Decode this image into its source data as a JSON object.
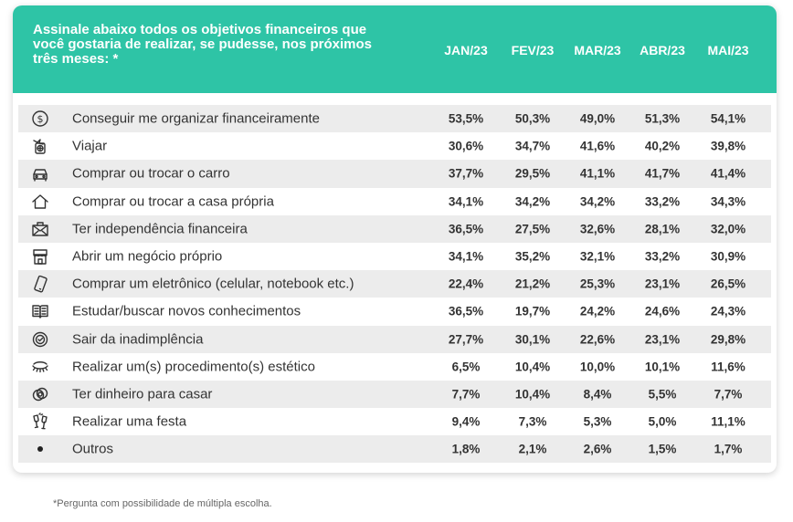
{
  "header": {
    "question": "Assinale abaixo todos os objetivos financeiros que você gostaria de realizar, se pudesse, nos próximos três meses: *"
  },
  "colors": {
    "header_bg": "#2ec4a6",
    "row_shade": "#ececec",
    "text": "#333333"
  },
  "chart_data": {
    "type": "table",
    "title": "Assinale abaixo todos os objetivos financeiros que você gostaria de realizar, se pudesse, nos próximos três meses: *",
    "columns": [
      "JAN/23",
      "FEV/23",
      "MAR/23",
      "ABR/23",
      "MAI/23"
    ],
    "rows": [
      {
        "icon": "money-icon",
        "label": "Conseguir me organizar financeiramente",
        "values": [
          "53,5%",
          "50,3%",
          "49,0%",
          "51,3%",
          "54,1%"
        ]
      },
      {
        "icon": "travel-icon",
        "label": "Viajar",
        "values": [
          "30,6%",
          "34,7%",
          "41,6%",
          "40,2%",
          "39,8%"
        ]
      },
      {
        "icon": "car-icon",
        "label": "Comprar ou trocar o carro",
        "values": [
          "37,7%",
          "29,5%",
          "41,1%",
          "41,7%",
          "41,4%"
        ]
      },
      {
        "icon": "house-icon",
        "label": "Comprar ou trocar a casa própria",
        "values": [
          "34,1%",
          "34,2%",
          "34,2%",
          "33,2%",
          "34,3%"
        ]
      },
      {
        "icon": "envelope-money-icon",
        "label": "Ter independência financeira",
        "values": [
          "36,5%",
          "27,5%",
          "32,6%",
          "28,1%",
          "32,0%"
        ]
      },
      {
        "icon": "store-icon",
        "label": "Abrir um negócio próprio",
        "values": [
          "34,1%",
          "35,2%",
          "32,1%",
          "33,2%",
          "30,9%"
        ]
      },
      {
        "icon": "phone-icon",
        "label": "Comprar um eletrônico (celular, notebook etc.)",
        "values": [
          "22,4%",
          "21,2%",
          "25,3%",
          "23,1%",
          "26,5%"
        ]
      },
      {
        "icon": "book-icon",
        "label": "Estudar/buscar novos conhecimentos",
        "values": [
          "36,5%",
          "19,7%",
          "24,2%",
          "24,6%",
          "24,3%"
        ]
      },
      {
        "icon": "badge-icon",
        "label": "Sair da inadimplência",
        "values": [
          "27,7%",
          "30,1%",
          "22,6%",
          "23,1%",
          "29,8%"
        ]
      },
      {
        "icon": "eye-lashes-icon",
        "label": "Realizar um(s) procedimento(s) estético",
        "values": [
          "6,5%",
          "10,4%",
          "10,0%",
          "10,1%",
          "11,6%"
        ]
      },
      {
        "icon": "rings-icon",
        "label": "Ter dinheiro para casar",
        "values": [
          "7,7%",
          "10,4%",
          "8,4%",
          "5,5%",
          "7,7%"
        ]
      },
      {
        "icon": "toast-glasses-icon",
        "label": "Realizar uma festa",
        "values": [
          "9,4%",
          "7,3%",
          "5,3%",
          "5,0%",
          "11,1%"
        ]
      },
      {
        "icon": "bullet-icon",
        "label": "Outros",
        "values": [
          "1,8%",
          "2,1%",
          "2,6%",
          "1,5%",
          "1,7%"
        ]
      }
    ]
  },
  "footnote": "*Pergunta com possibilidade de múltipla escolha."
}
